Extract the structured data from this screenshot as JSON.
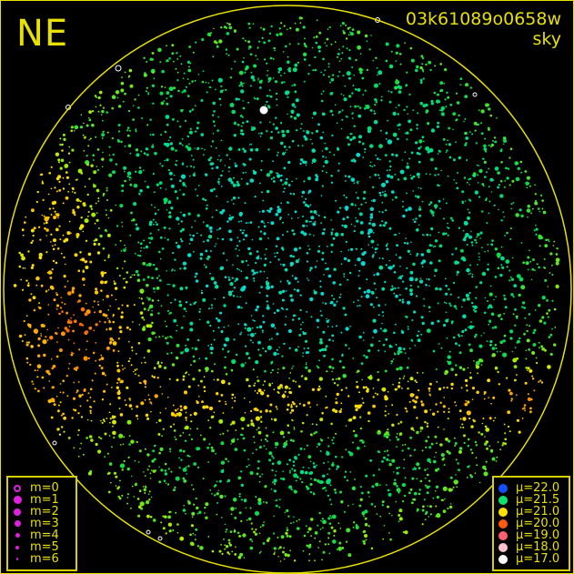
{
  "header": {
    "corner_label": "NE",
    "image_id": "03k61089o0658w",
    "image_type": "sky"
  },
  "colors": {
    "frame": "#e8e000",
    "background": "#000000"
  },
  "chart_data": {
    "type": "scatter",
    "title": "",
    "grid": false,
    "legend_placement": "bottom-left and bottom-right",
    "magnitude_legend": [
      {
        "label": "m=0",
        "style": "ring"
      },
      {
        "label": "m=1",
        "style": "dot"
      },
      {
        "label": "m=2",
        "style": "dot"
      },
      {
        "label": "m=3",
        "style": "dot"
      },
      {
        "label": "m=4",
        "style": "dot"
      },
      {
        "label": "m=5",
        "style": "dot"
      },
      {
        "label": "m=6",
        "style": "dot"
      }
    ],
    "brightness_legend": [
      {
        "label": "μ=22.0",
        "color": "#1050ff"
      },
      {
        "label": "μ=21.5",
        "color": "#10e070"
      },
      {
        "label": "μ=21.0",
        "color": "#ffe000"
      },
      {
        "label": "μ=20.0",
        "color": "#ff5a10"
      },
      {
        "label": "μ=19.0",
        "color": "#ff6070"
      },
      {
        "label": "μ=18.0",
        "color": "#ffc0d0"
      },
      {
        "label": "μ=17.0",
        "color": "#ffffff"
      }
    ]
  }
}
